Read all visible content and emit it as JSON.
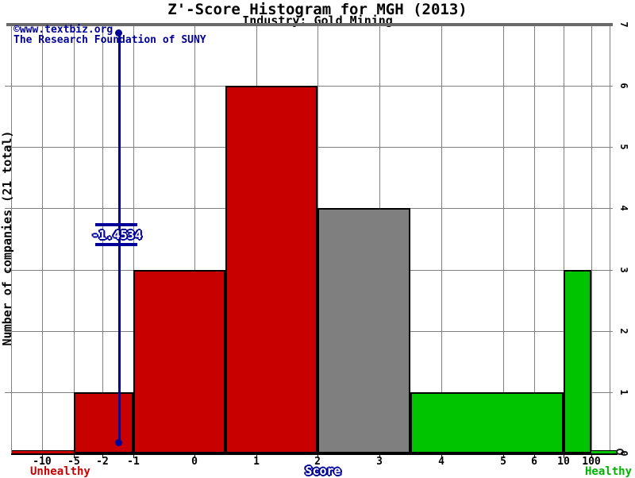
{
  "watermark": {
    "line1": "©www.textbiz.org",
    "line2": "The Research Foundation of SUNY"
  },
  "chart_data": {
    "type": "bar",
    "title": "Z'-Score Histogram for MGH (2013)",
    "subtitle": "Industry: Gold Mining",
    "xlabel": "Score",
    "ylabel": "Number of companies (21 total)",
    "total_companies": 21,
    "ylim": [
      0,
      7
    ],
    "y_ticks": [
      0,
      1,
      2,
      3,
      4,
      5,
      6,
      7
    ],
    "x_ticks": [
      -10,
      -5,
      -2,
      -1,
      0,
      1,
      2,
      3,
      4,
      5,
      6,
      10,
      100
    ],
    "grid": true,
    "bins": [
      {
        "from": -5,
        "to": -1,
        "count": 1,
        "status": "unhealthy"
      },
      {
        "from": -1,
        "to": 0.5,
        "count": 3,
        "status": "unhealthy"
      },
      {
        "from": 0.5,
        "to": 2,
        "count": 6,
        "status": "unhealthy"
      },
      {
        "from": 2,
        "to": 3.5,
        "count": 4,
        "status": "neutral"
      },
      {
        "from": 3.5,
        "to": 10,
        "count": 1,
        "status": "healthy"
      },
      {
        "from": 10,
        "to": 100,
        "count": 3,
        "status": "healthy"
      }
    ],
    "tails": [
      {
        "side": "left",
        "to": -5,
        "status": "unhealthy"
      },
      {
        "side": "right",
        "from": 100,
        "status": "healthy"
      }
    ],
    "company_marker": {
      "value": -1.4534,
      "label": "-1.4534"
    },
    "legend": {
      "left": "Unhealthy",
      "right": "Healthy"
    },
    "colors": {
      "unhealthy": "#c80000",
      "neutral": "#7f7f7f",
      "healthy": "#00c400",
      "marker": "#000099",
      "grid": "#808080",
      "axis": "#000000"
    }
  }
}
